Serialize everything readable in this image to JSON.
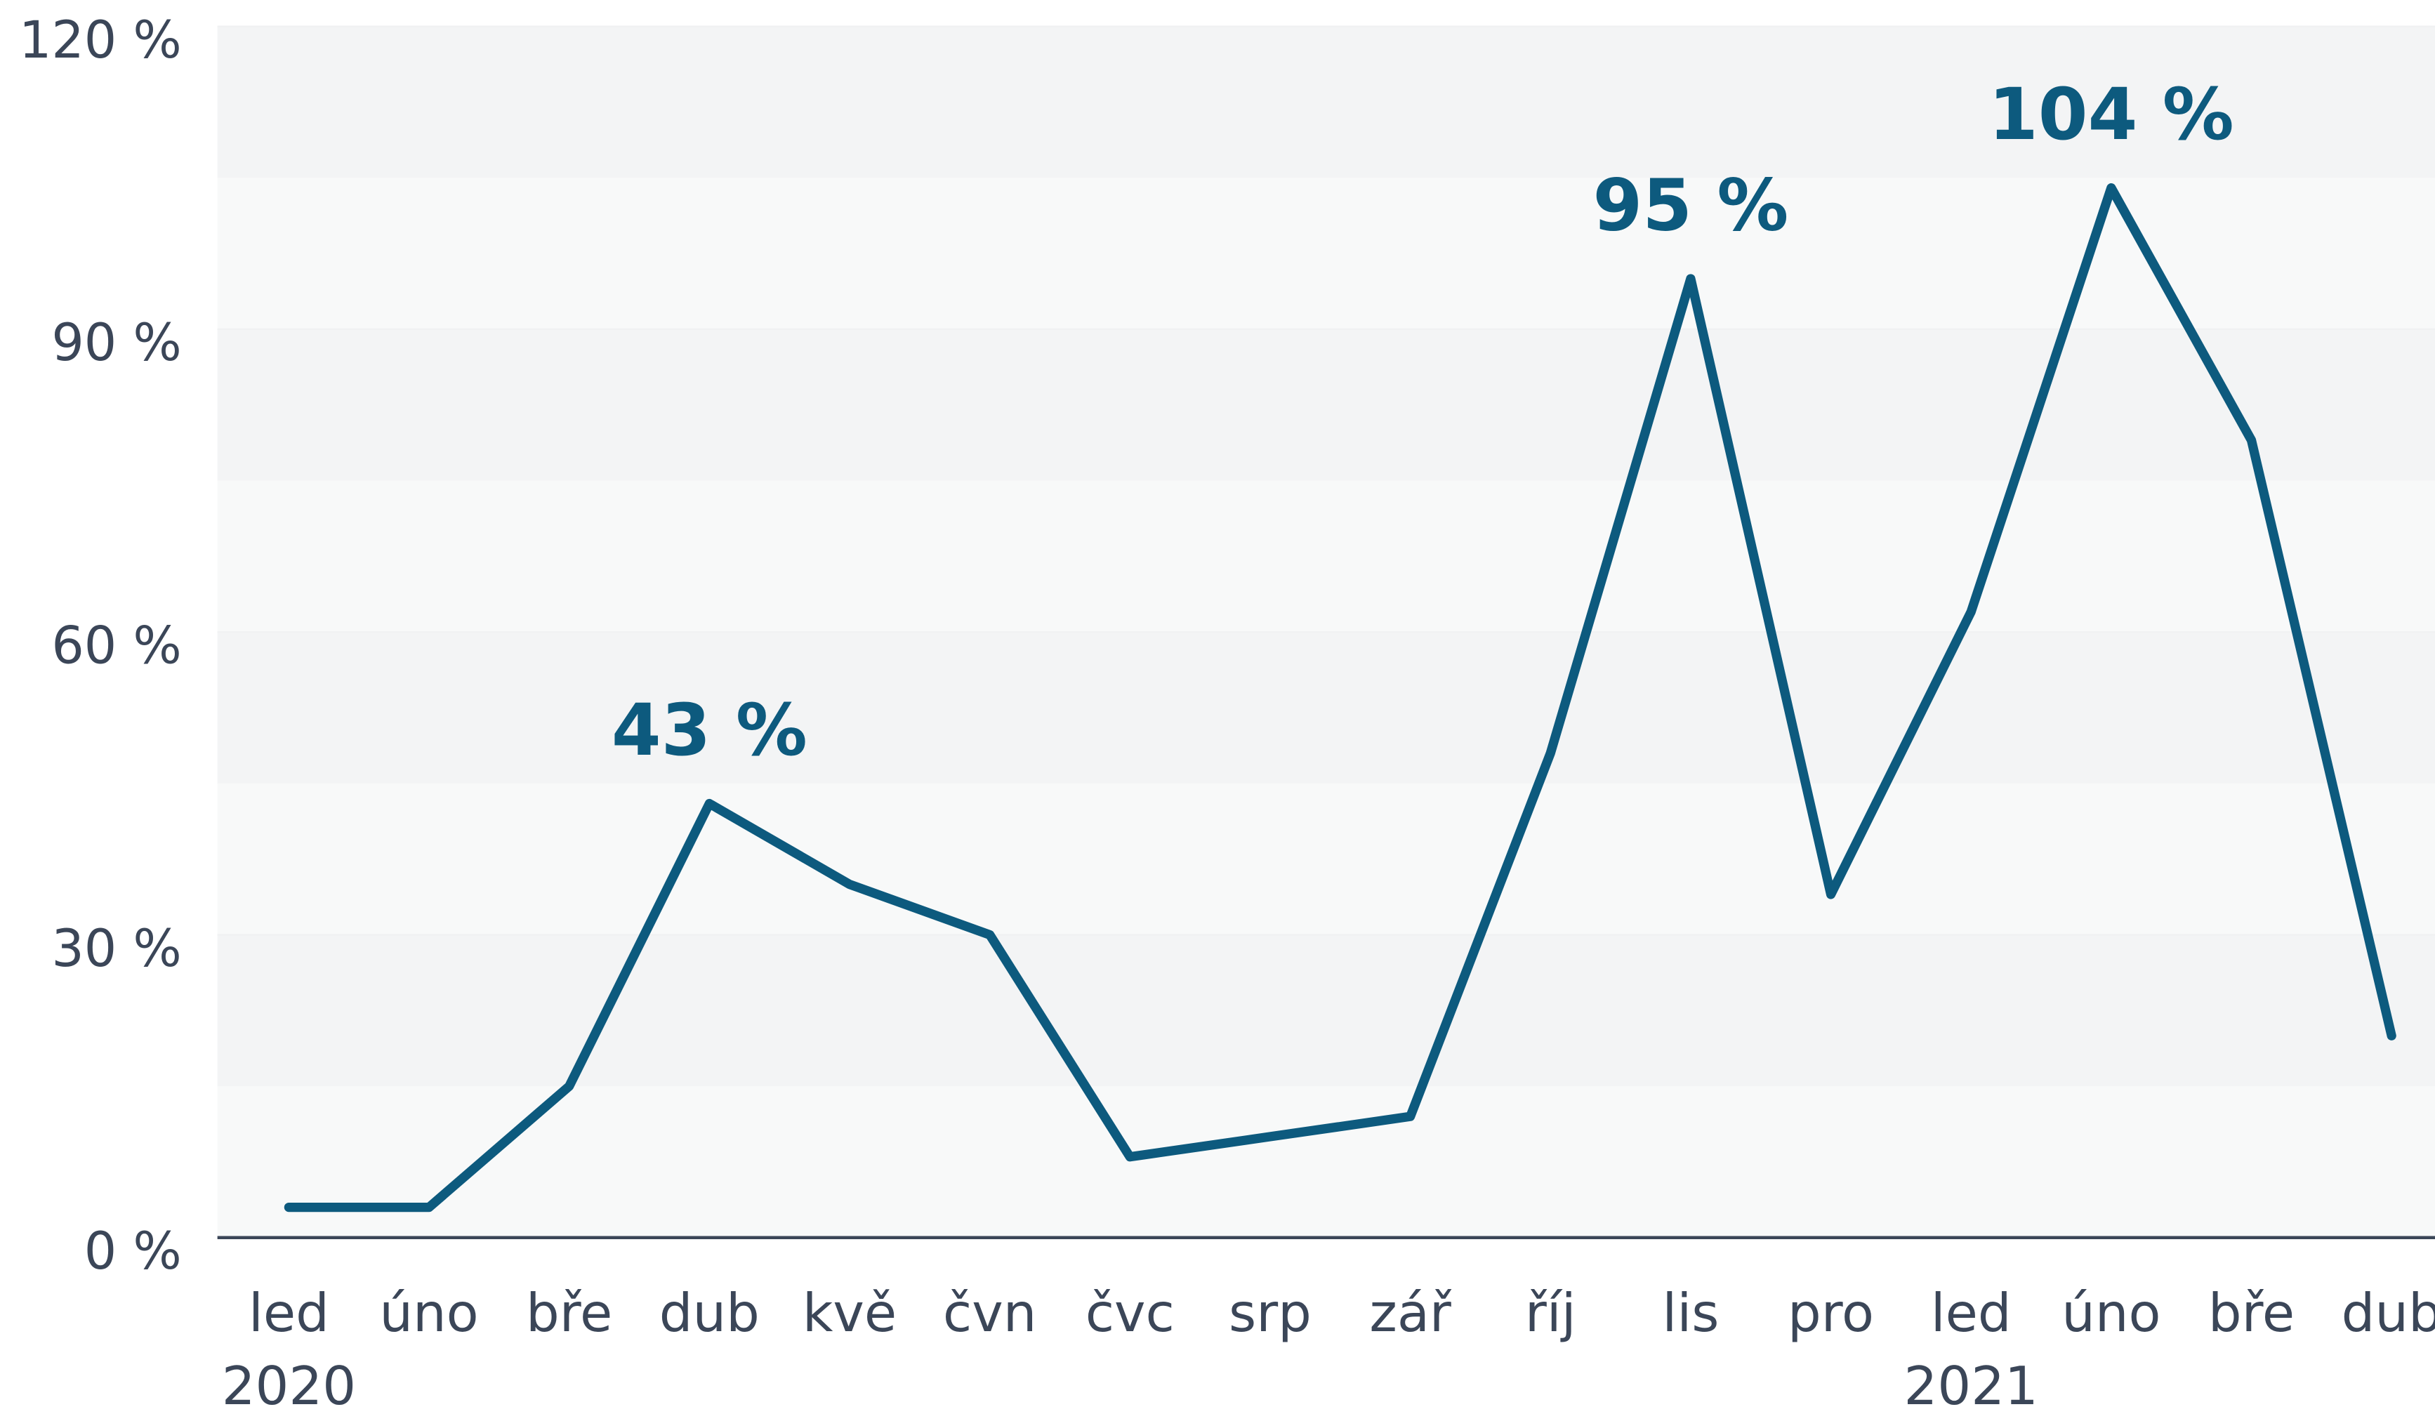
{
  "chart_data": {
    "type": "line",
    "categories": [
      "led",
      "úno",
      "bře",
      "dub",
      "kvě",
      "čvn",
      "čvc",
      "srp",
      "zář",
      "říj",
      "lis",
      "pro",
      "led",
      "úno",
      "bře",
      "dub"
    ],
    "year_labels": [
      "2020",
      null,
      null,
      null,
      null,
      null,
      null,
      null,
      null,
      null,
      null,
      null,
      "2021",
      null,
      null,
      null
    ],
    "values": [
      3,
      3,
      15,
      43,
      35,
      30,
      8,
      10,
      12,
      48,
      95,
      34,
      62,
      104,
      79,
      20
    ],
    "value_labels": [
      null,
      null,
      null,
      "43 %",
      null,
      null,
      null,
      null,
      null,
      null,
      "95 %",
      null,
      null,
      "104 %",
      null,
      null
    ],
    "color": "#0d5a7e",
    "ylim": [
      0,
      120
    ],
    "yticks": [
      {
        "value": 0,
        "label": "0 %"
      },
      {
        "value": 30,
        "label": "30 %"
      },
      {
        "value": 60,
        "label": "60 %"
      },
      {
        "value": 90,
        "label": "90 %"
      },
      {
        "value": 120,
        "label": "120 %"
      }
    ],
    "grid": true
  }
}
